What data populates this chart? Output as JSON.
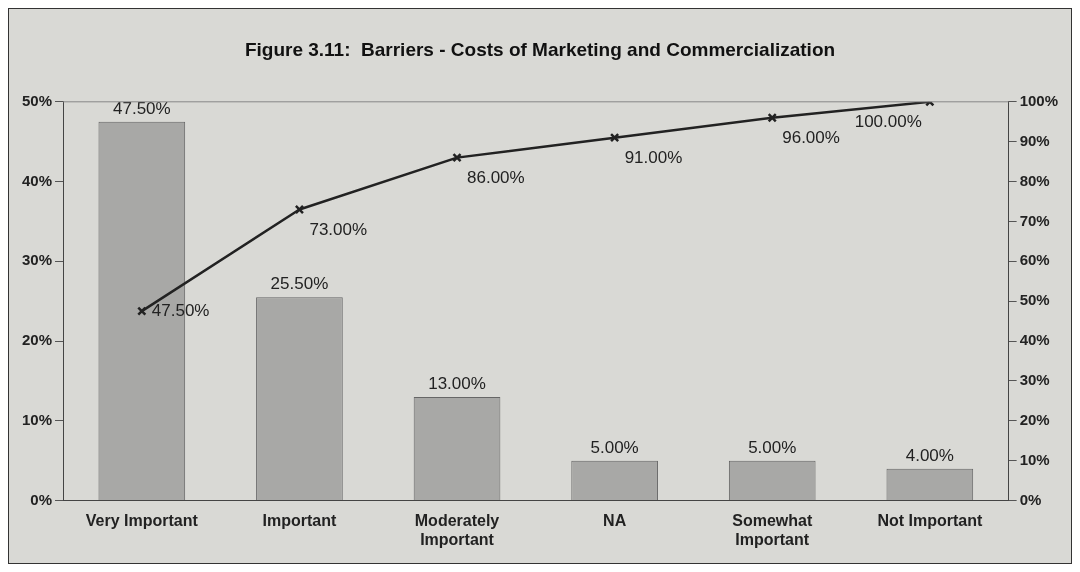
{
  "chart_data": {
    "type": "bar",
    "title": "Figure 3.11:  Barriers - Costs of Marketing and Commercialization",
    "categories": [
      "Very Important",
      "Important",
      "Moderately Important",
      "NA",
      "Somewhat Important",
      "Not Important"
    ],
    "series": [
      {
        "color": "#a8a8a6",
        "values": [
          47.5,
          25.5,
          13,
          5,
          5,
          4
        ],
        "value_labels": [
          "47.50%",
          "25.50%",
          "13.00%",
          "5.00%",
          "5.00%",
          "4.00%"
        ]
      },
      {
        "type": "line",
        "axis": "y2",
        "color": "#222222",
        "values": [
          47.5,
          73,
          86,
          91,
          96,
          100
        ],
        "value_labels": [
          "47.50%",
          "73.00%",
          "86.00%",
          "91.00%",
          "96.00%",
          "100.00%"
        ]
      }
    ],
    "ylim": [
      0,
      50
    ],
    "yticks": [
      {
        "value": 0,
        "label": "0%"
      },
      {
        "value": 10,
        "label": "10%"
      },
      {
        "value": 20,
        "label": "20%"
      },
      {
        "value": 30,
        "label": "30%"
      },
      {
        "value": 40,
        "label": "40%"
      },
      {
        "value": 50,
        "label": "50%"
      }
    ],
    "y2lim": [
      0,
      100
    ],
    "y2ticks": [
      {
        "value": 0,
        "label": "0%"
      },
      {
        "value": 10,
        "label": "10%"
      },
      {
        "value": 20,
        "label": "20%"
      },
      {
        "value": 30,
        "label": "30%"
      },
      {
        "value": 40,
        "label": "40%"
      },
      {
        "value": 50,
        "label": "50%"
      },
      {
        "value": 60,
        "label": "60%"
      },
      {
        "value": 70,
        "label": "70%"
      },
      {
        "value": 80,
        "label": "80%"
      },
      {
        "value": 90,
        "label": "90%"
      },
      {
        "value": 100,
        "label": "100%"
      }
    ],
    "marker": "cross"
  }
}
